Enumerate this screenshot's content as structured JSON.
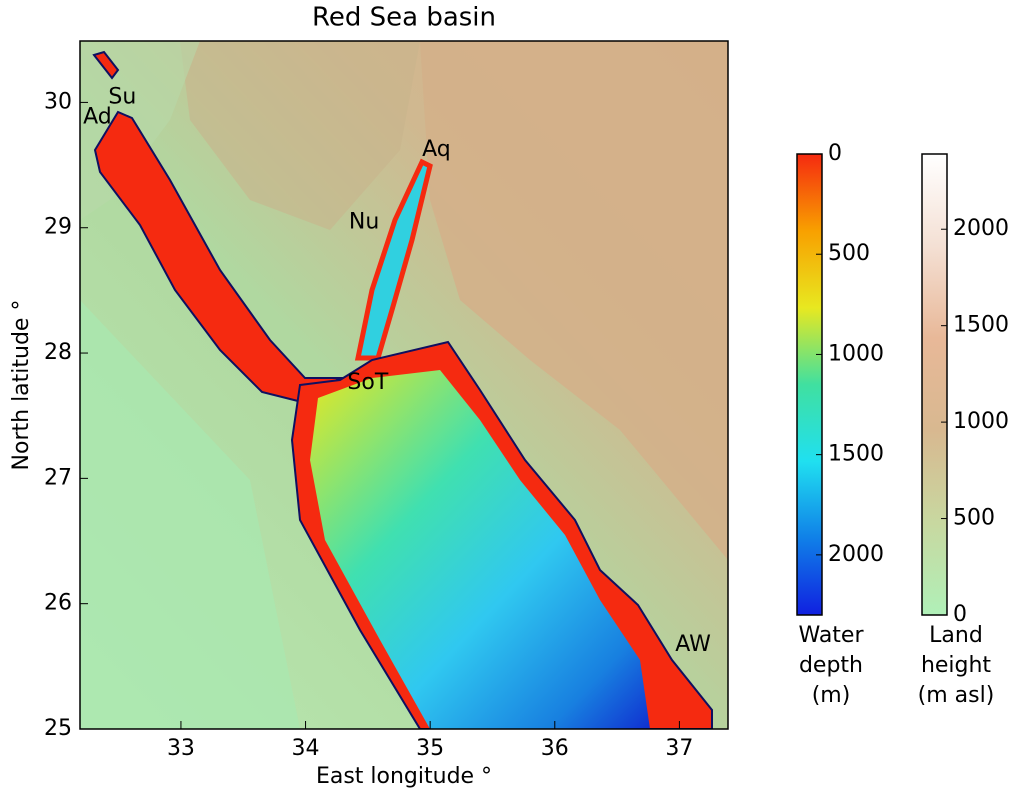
{
  "chart_data": {
    "type": "map",
    "title": "Red Sea basin",
    "x_label": "East longitude °",
    "y_label": "North latitude °",
    "xlim": [
      32.19,
      37.39
    ],
    "ylim": [
      25,
      30.49
    ],
    "xticks": [
      33,
      34,
      35,
      36,
      37
    ],
    "yticks": [
      25,
      26,
      27,
      28,
      29,
      30
    ],
    "annotations": [
      {
        "text": "Ad",
        "x": 32.33,
        "y": 29.88
      },
      {
        "text": "Su",
        "x": 32.53,
        "y": 30.04
      },
      {
        "text": "Aq",
        "x": 35.05,
        "y": 29.62
      },
      {
        "text": "Nu",
        "x": 34.47,
        "y": 29.04
      },
      {
        "text": "SoT",
        "x": 34.5,
        "y": 27.76
      },
      {
        "text": "AW",
        "x": 37.11,
        "y": 25.67
      }
    ],
    "colorbars": [
      {
        "label": [
          "Water",
          "depth",
          "(m)"
        ],
        "lim": [
          0,
          2300
        ],
        "ticks": [
          0,
          500,
          1000,
          1500,
          2000
        ],
        "inverted": true,
        "colors": [
          "#f52a10",
          "#f8a000",
          "#e8e820",
          "#40e0a0",
          "#20e0f0",
          "#1080e8",
          "#1020e0"
        ]
      },
      {
        "label": [
          "Land",
          "height",
          "(m asl)"
        ],
        "lim": [
          0,
          2390
        ],
        "ticks": [
          0,
          500,
          1000,
          1500,
          2000
        ],
        "inverted": false,
        "colors": [
          "#b0f0b8",
          "#c8d8a0",
          "#d8b890",
          "#e8b898",
          "#f4e0d4",
          "#ffffff"
        ]
      }
    ]
  }
}
